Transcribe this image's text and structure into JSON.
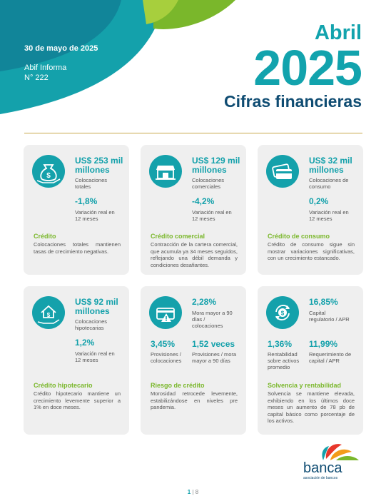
{
  "header": {
    "date": "30 de mayo de 2025",
    "issue_line1": "Abif Informa",
    "issue_line2": "N° 222",
    "month": "Abril",
    "year": "2025",
    "subtitle": "Cifras financieras"
  },
  "cards": {
    "credito": {
      "amount": "US$ 253 mil millones",
      "amount_label": "Colocaciones totales",
      "pct": "-1,8%",
      "pct_label": "Variación real en 12 meses",
      "title": "Crédito",
      "desc": "Colocaciones totales mantienen tasas de crecimiento negativas."
    },
    "comercial": {
      "amount": "US$ 129 mil millones",
      "amount_label": "Colocaciones comerciales",
      "pct": "-4,2%",
      "pct_label": "Variación real en 12 meses",
      "title": "Crédito comercial",
      "desc": "Contracción de la cartera comercial, que acumula ya 34 meses seguidos, reflejando una débil demanda y condiciones desafiantes."
    },
    "consumo": {
      "amount": "US$ 32 mil millones",
      "amount_label": "Colocaciones de consumo",
      "pct": "0,2%",
      "pct_label": "Variación real en 12 meses",
      "title": "Crédito de consumo",
      "desc": "Crédito de consumo sigue sin mostrar variaciones significativas, con un crecimiento estancado."
    },
    "hipotecario": {
      "amount": "US$ 92 mil millones",
      "amount_label": "Colocaciones hipotecarias",
      "pct": "1,2%",
      "pct_label": "Variación real en 12 meses",
      "title": "Crédito hipotecario",
      "desc": "Crédito hipotecario mantiene un crecimiento levemente superior a 1% en doce meses."
    },
    "riesgo": {
      "mora": "2,28%",
      "mora_label": "Mora mayor a 90 días / colocaciones",
      "prov": "3,45%",
      "prov_label": "Provisiones / colocaciones",
      "veces": "1,52 veces",
      "veces_label": "Provisiones / mora mayor a 90 días",
      "title": "Riesgo de crédito",
      "desc": "Morosidad retrocede levemente, estabilizándose en niveles pre pandemia."
    },
    "solvencia": {
      "capital": "16,85%",
      "capital_label": "Capital regulatorio / APR",
      "rent": "1,36%",
      "rent_label": "Rentabilidad sobre activos promedio",
      "req": "11,99%",
      "req_label": "Requerimiento de capital / APR",
      "title": "Solvencia y rentabilidad",
      "desc": "Solvencia se mantiene elevada, exhibiendo en los últimos doce meses un aumento de 78 pb de capital básico como porcentaje de los activos."
    }
  },
  "logo": {
    "word": "banca",
    "sub": "asociación de bancos"
  },
  "page": {
    "current": "1",
    "total": "| 8"
  },
  "colors": {
    "teal": "#14a1ab",
    "navy": "#0f4c72",
    "green": "#7ab72b",
    "card_bg": "#efefef"
  }
}
